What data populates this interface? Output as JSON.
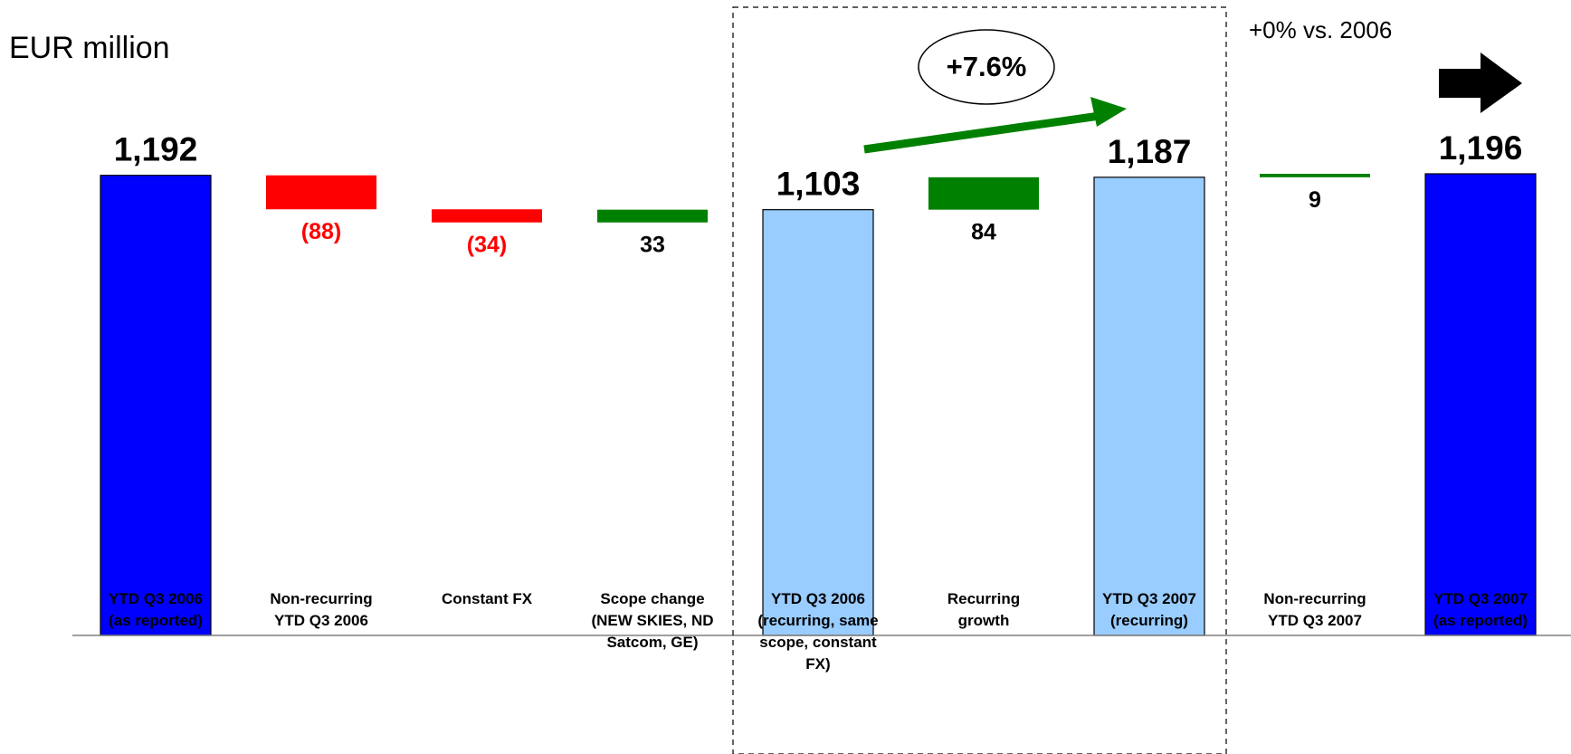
{
  "chart_data": {
    "type": "waterfall",
    "unit_label": "EUR million",
    "categories": [
      "YTD Q3 2006 (as reported)",
      "Non-recurring YTD Q3 2006",
      "Constant FX",
      "Scope change (NEW SKIES, ND Satcom, GE)",
      "YTD Q3 2006 (recurring, same scope, constant FX)",
      "Recurring growth",
      "YTD Q3 2007 (recurring)",
      "Non-recurring YTD Q3 2007",
      "YTD Q3 2007 (as reported)"
    ],
    "category_lines": [
      [
        "YTD Q3 2006",
        "(as reported)"
      ],
      [
        "Non-recurring",
        "YTD Q3 2006"
      ],
      [
        "Constant FX"
      ],
      [
        "Scope change",
        "(NEW SKIES, ND",
        "Satcom, GE)"
      ],
      [
        "YTD Q3 2006",
        "(recurring, same",
        "scope, constant",
        "FX)"
      ],
      [
        "Recurring",
        "growth"
      ],
      [
        "YTD Q3 2007",
        "(recurring)"
      ],
      [
        "Non-recurring",
        "YTD Q3 2007"
      ],
      [
        "YTD Q3 2007",
        "(as reported)"
      ]
    ],
    "values": [
      1192,
      -88,
      -34,
      33,
      1103,
      84,
      1187,
      9,
      1196
    ],
    "kinds": [
      "total",
      "delta",
      "delta",
      "delta",
      "total",
      "delta",
      "total",
      "delta",
      "total"
    ],
    "value_labels": [
      "1,192",
      "(88)",
      "(34)",
      "33",
      "1,103",
      "84",
      "1,187",
      "9",
      "1,196"
    ],
    "colors": {
      "total_reported": "#0000ff",
      "total_recurring": "#99ccff",
      "negative": "#ff0000",
      "positive": "#008000",
      "negative_label": "#ff0000",
      "positive_label": "#000000"
    },
    "growth_annotation": "+7.6%",
    "comparison_label": "+0% vs. 2006",
    "highlight_range": [
      4,
      6
    ]
  }
}
